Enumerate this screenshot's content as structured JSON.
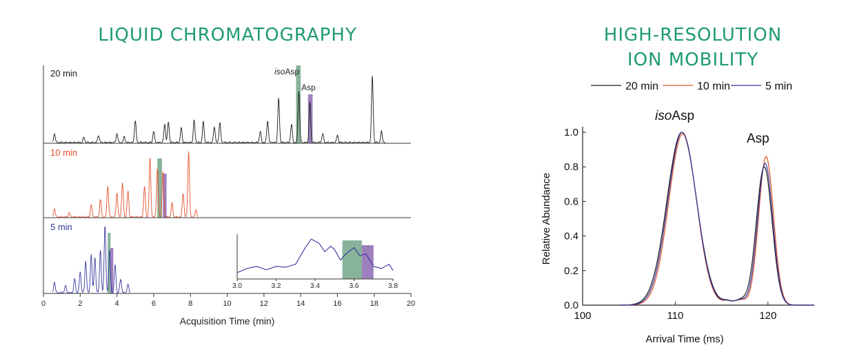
{
  "colors": {
    "title": "#1e9a73",
    "run20": "#1a1a1a",
    "run10": "#e0502a",
    "run5": "#3535a0",
    "isoBand": "#5f9a7a",
    "aspBand": "#7f55a8"
  },
  "lc_title": "LIQUID CHROMATOGRAPHY",
  "im_title_line1": "HIGH-RESOLUTION",
  "im_title_line2": "ION MOBILITY",
  "chart_data": [
    {
      "type": "line",
      "title": "LIQUID CHROMATOGRAPHY",
      "xlabel": "Acquisition Time (min)",
      "xlim": [
        0,
        20
      ],
      "xticks": [
        0,
        2,
        4,
        6,
        8,
        10,
        12,
        14,
        16,
        18,
        20
      ],
      "xtick_labels": [
        "0",
        "2",
        "4",
        "6",
        "8",
        "10",
        "12",
        "14",
        "16",
        "18",
        "20"
      ],
      "labels": {
        "iso_prefix": "iso",
        "iso_suffix": "Asp",
        "asp": "Asp"
      },
      "panels": [
        {
          "name": "20 min",
          "label": "20 min",
          "color": "#1a1a1a",
          "peaks": [
            [
              0.6,
              0.12
            ],
            [
              2.2,
              0.07
            ],
            [
              3.0,
              0.1
            ],
            [
              4.0,
              0.12
            ],
            [
              4.4,
              0.08
            ],
            [
              5.0,
              0.3
            ],
            [
              6.0,
              0.15
            ],
            [
              6.6,
              0.25
            ],
            [
              6.8,
              0.28
            ],
            [
              7.5,
              0.2
            ],
            [
              8.2,
              0.3
            ],
            [
              8.7,
              0.28
            ],
            [
              9.3,
              0.22
            ],
            [
              9.6,
              0.27
            ],
            [
              11.8,
              0.15
            ],
            [
              12.2,
              0.3
            ],
            [
              12.8,
              0.6
            ],
            [
              13.5,
              0.25
            ],
            [
              13.9,
              0.7
            ],
            [
              14.5,
              0.55
            ],
            [
              15.2,
              0.12
            ],
            [
              16.0,
              0.1
            ],
            [
              17.9,
              0.9
            ],
            [
              18.4,
              0.15
            ]
          ],
          "baseline_end": 18.6,
          "iso_band": [
            13.75,
            14.0
          ],
          "asp_band": [
            14.4,
            14.65
          ]
        },
        {
          "name": "10 min",
          "label": "10 min",
          "color": "#e0502a",
          "peaks": [
            [
              0.6,
              0.12
            ],
            [
              1.4,
              0.06
            ],
            [
              2.6,
              0.18
            ],
            [
              3.1,
              0.25
            ],
            [
              3.5,
              0.45
            ],
            [
              4.0,
              0.35
            ],
            [
              4.3,
              0.5
            ],
            [
              4.6,
              0.38
            ],
            [
              5.5,
              0.45
            ],
            [
              5.8,
              0.85
            ],
            [
              6.2,
              0.7
            ],
            [
              6.5,
              0.65
            ],
            [
              7.0,
              0.2
            ],
            [
              7.6,
              0.35
            ],
            [
              7.9,
              0.95
            ],
            [
              8.3,
              0.1
            ]
          ],
          "baseline_end": 8.4,
          "iso_band": [
            6.2,
            6.45
          ],
          "asp_band": [
            6.5,
            6.7
          ]
        },
        {
          "name": "5 min",
          "label": "5 min",
          "color": "#3535a0",
          "peaks": [
            [
              0.6,
              0.15
            ],
            [
              1.2,
              0.1
            ],
            [
              1.7,
              0.2
            ],
            [
              2.0,
              0.3
            ],
            [
              2.3,
              0.45
            ],
            [
              2.6,
              0.55
            ],
            [
              2.8,
              0.5
            ],
            [
              3.1,
              0.6
            ],
            [
              3.35,
              0.95
            ],
            [
              3.6,
              0.6
            ],
            [
              3.9,
              0.4
            ],
            [
              4.2,
              0.2
            ],
            [
              4.6,
              0.12
            ]
          ],
          "baseline_end": 4.7,
          "iso_band": [
            3.5,
            3.65
          ],
          "asp_band": [
            3.65,
            3.8
          ]
        }
      ],
      "inset": {
        "xlim": [
          3.0,
          3.8
        ],
        "xticks": [
          3.0,
          3.2,
          3.4,
          3.6,
          3.8
        ],
        "xtick_labels": [
          "3.0",
          "3.2",
          "3.4",
          "3.6",
          "3.8"
        ],
        "x": [
          3.0,
          3.05,
          3.1,
          3.15,
          3.2,
          3.25,
          3.3,
          3.35,
          3.38,
          3.42,
          3.45,
          3.48,
          3.5,
          3.53,
          3.56,
          3.6,
          3.63,
          3.66,
          3.7,
          3.74,
          3.78,
          3.8
        ],
        "y": [
          0.15,
          0.25,
          0.3,
          0.22,
          0.3,
          0.28,
          0.35,
          0.75,
          0.95,
          0.85,
          0.65,
          0.78,
          0.7,
          0.45,
          0.6,
          0.75,
          0.55,
          0.6,
          0.3,
          0.25,
          0.35,
          0.2
        ],
        "iso_band": [
          3.54,
          3.64
        ],
        "asp_band": [
          3.64,
          3.7
        ]
      }
    },
    {
      "type": "line",
      "title": "HIGH-RESOLUTION ION MOBILITY",
      "xlabel": "Arrival Time (ms)",
      "ylabel": "Relative Abundance",
      "xlim": [
        100,
        125
      ],
      "ylim": [
        0,
        1.0
      ],
      "xticks": [
        100,
        110,
        120
      ],
      "xtick_labels": [
        "100",
        "110",
        "120"
      ],
      "yticks": [
        0,
        0.2,
        0.4,
        0.6,
        0.8,
        1.0
      ],
      "ytick_labels": [
        "0.0",
        "0.2",
        "0.4",
        "0.6",
        "0.8",
        "1.0"
      ],
      "annotations": {
        "iso_prefix": "iso",
        "iso_suffix": "Asp",
        "asp": "Asp"
      },
      "series": [
        {
          "name": "20 min",
          "label": "20 min",
          "color": "#1a1a1a",
          "peak1": [
            110.7,
            1.0,
            1.6
          ],
          "peak2": [
            119.6,
            0.8,
            0.85
          ]
        },
        {
          "name": "10 min",
          "label": "10 min",
          "color": "#e0502a",
          "peak1": [
            110.8,
            0.99,
            1.5
          ],
          "peak2": [
            119.8,
            0.86,
            0.8
          ]
        },
        {
          "name": "5 min",
          "label": "5 min",
          "color": "#3535a0",
          "peak1": [
            110.75,
            1.0,
            1.55
          ],
          "peak2": [
            119.7,
            0.82,
            0.82
          ]
        }
      ]
    }
  ]
}
